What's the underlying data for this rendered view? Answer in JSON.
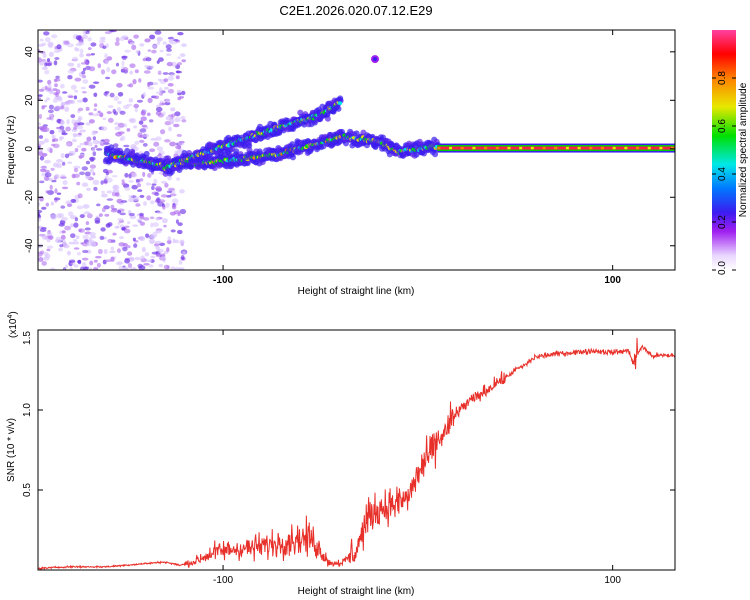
{
  "title": "C2E1.2026.020.07.12.E29",
  "colors": {
    "snr_line": "#e8302a",
    "axis": "#000000",
    "colormap": [
      "#ffffff",
      "#a020f0",
      "#3b1cf0",
      "#0050ff",
      "#00e8e8",
      "#00e000",
      "#e8e800",
      "#ff8000",
      "#ff0000",
      "#ff40a0"
    ]
  },
  "chart_data": [
    {
      "type": "heatmap",
      "name": "spectrogram",
      "xlabel": "Height of straight line (km)",
      "ylabel": "Frequency (Hz)",
      "xlim": [
        -195,
        132
      ],
      "ylim": [
        -50,
        49
      ],
      "xticks": [
        -100,
        100
      ],
      "yticks": [
        -40,
        -20,
        0,
        20,
        40
      ],
      "colorbar": {
        "label": "Normalized spectral amplitude",
        "range": [
          0.0,
          1.0
        ],
        "ticks": [
          0.0,
          0.2,
          0.4,
          0.6,
          0.8
        ]
      },
      "features": [
        {
          "segment": "noisy scatter",
          "x_range": [
            -195,
            -120
          ],
          "freq_range": [
            -50,
            49
          ],
          "amplitude": 0.15
        },
        {
          "segment": "main trace",
          "points": [
            [
              -160,
              -2
            ],
            [
              -130,
              -7
            ],
            [
              -100,
              -5
            ],
            [
              -70,
              -2
            ],
            [
              -40,
              5
            ],
            [
              -20,
              3
            ],
            [
              -10,
              -1
            ],
            [
              10,
              1
            ]
          ],
          "amplitude": 0.45
        },
        {
          "segment": "upper branch",
          "points": [
            [
              -130,
              -8
            ],
            [
              -100,
              1
            ],
            [
              -70,
              9
            ],
            [
              -50,
              14
            ],
            [
              -40,
              19
            ]
          ],
          "amplitude": 0.4
        },
        {
          "segment": "isolated spot",
          "points": [
            [
              -22,
              37
            ]
          ],
          "amplitude": 0.3
        },
        {
          "segment": "constant line",
          "x_range": [
            10,
            132
          ],
          "freq": 0.3,
          "amplitude": 0.95
        }
      ]
    },
    {
      "type": "line",
      "name": "snr",
      "xlabel": "Height of straight line (km)",
      "ylabel": "SNR (10 * v/v)",
      "ymultiplier": "(x10",
      "ymultiplier_exp": "4",
      "ymultiplier_close": ")",
      "xlim": [
        -195,
        132
      ],
      "ylim": [
        0,
        1.5
      ],
      "xticks": [
        -100,
        100
      ],
      "yticks": [
        0.5,
        1.0,
        1.5
      ],
      "series": [
        {
          "name": "SNR",
          "x": [
            -195,
            -180,
            -160,
            -150,
            -140,
            -130,
            -122,
            -115,
            -105,
            -95,
            -85,
            -75,
            -65,
            -55,
            -50,
            -45,
            -38,
            -32,
            -25,
            -20,
            -15,
            -10,
            -5,
            0,
            5,
            10,
            15,
            20,
            25,
            30,
            35,
            40,
            45,
            50,
            55,
            60,
            70,
            80,
            90,
            100,
            108,
            111,
            115,
            120,
            132
          ],
          "y": [
            0.01,
            0.02,
            0.02,
            0.03,
            0.04,
            0.05,
            0.03,
            0.05,
            0.11,
            0.13,
            0.14,
            0.16,
            0.19,
            0.2,
            0.12,
            0.04,
            0.05,
            0.12,
            0.34,
            0.38,
            0.4,
            0.42,
            0.45,
            0.6,
            0.7,
            0.8,
            0.88,
            0.98,
            1.04,
            1.08,
            1.12,
            1.17,
            1.2,
            1.25,
            1.28,
            1.33,
            1.35,
            1.36,
            1.37,
            1.36,
            1.37,
            1.3,
            1.4,
            1.34,
            1.34
          ]
        }
      ]
    }
  ]
}
